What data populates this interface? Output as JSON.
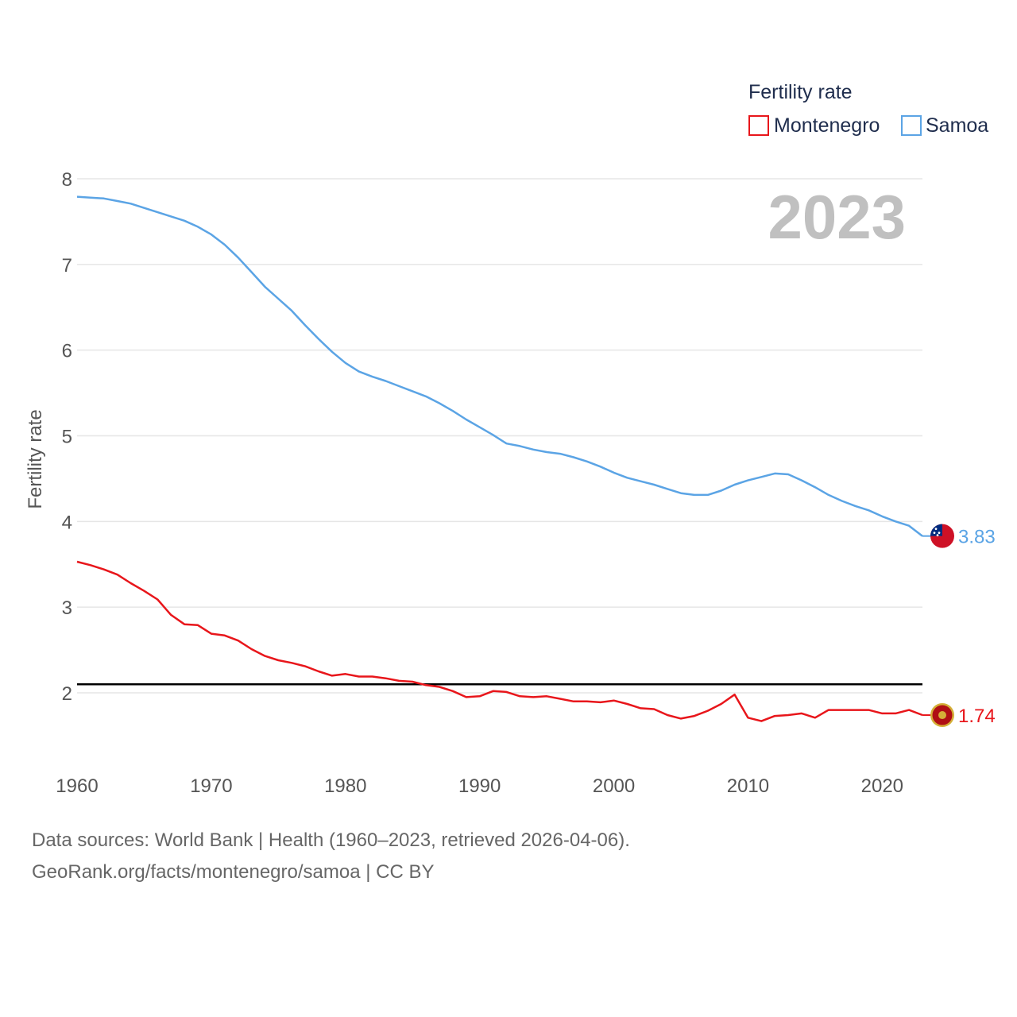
{
  "chart_data": {
    "type": "line",
    "legend_title": "Fertility rate",
    "ylabel": "Fertility rate",
    "year_label": "2023",
    "ylim": [
      1.0,
      8.2
    ],
    "xlim": [
      1960,
      2023
    ],
    "yticks": [
      2,
      3,
      4,
      5,
      6,
      7,
      8
    ],
    "xticks": [
      1960,
      1970,
      1980,
      1990,
      2000,
      2010,
      2020
    ],
    "reference_line": 2.1,
    "x": [
      1960,
      1961,
      1962,
      1963,
      1964,
      1965,
      1966,
      1967,
      1968,
      1969,
      1970,
      1971,
      1972,
      1973,
      1974,
      1975,
      1976,
      1977,
      1978,
      1979,
      1980,
      1981,
      1982,
      1983,
      1984,
      1985,
      1986,
      1987,
      1988,
      1989,
      1990,
      1991,
      1992,
      1993,
      1994,
      1995,
      1996,
      1997,
      1998,
      1999,
      2000,
      2001,
      2002,
      2003,
      2004,
      2005,
      2006,
      2007,
      2008,
      2009,
      2010,
      2011,
      2012,
      2013,
      2014,
      2015,
      2016,
      2017,
      2018,
      2019,
      2020,
      2021,
      2022,
      2023
    ],
    "series": [
      {
        "name": "Montenegro",
        "color": "#e8161b",
        "end_label": "1.74",
        "flag": "montenegro-flag",
        "values": [
          3.53,
          3.49,
          3.44,
          3.38,
          3.28,
          3.19,
          3.09,
          2.91,
          2.8,
          2.79,
          2.69,
          2.67,
          2.61,
          2.51,
          2.43,
          2.38,
          2.35,
          2.31,
          2.25,
          2.2,
          2.22,
          2.19,
          2.19,
          2.17,
          2.14,
          2.13,
          2.09,
          2.07,
          2.02,
          1.95,
          1.96,
          2.02,
          2.01,
          1.96,
          1.95,
          1.96,
          1.93,
          1.9,
          1.9,
          1.89,
          1.91,
          1.87,
          1.82,
          1.81,
          1.74,
          1.7,
          1.73,
          1.79,
          1.87,
          1.98,
          1.71,
          1.67,
          1.73,
          1.74,
          1.76,
          1.71,
          1.8,
          1.8,
          1.8,
          1.8,
          1.76,
          1.76,
          1.8,
          1.74
        ]
      },
      {
        "name": "Samoa",
        "color": "#5ba4e5",
        "end_label": "3.83",
        "flag": "samoa-flag",
        "values": [
          7.79,
          7.78,
          7.77,
          7.74,
          7.71,
          7.66,
          7.61,
          7.56,
          7.51,
          7.44,
          7.35,
          7.23,
          7.08,
          6.91,
          6.74,
          6.6,
          6.46,
          6.29,
          6.13,
          5.98,
          5.85,
          5.75,
          5.69,
          5.64,
          5.58,
          5.52,
          5.46,
          5.38,
          5.29,
          5.19,
          5.1,
          5.01,
          4.91,
          4.88,
          4.84,
          4.81,
          4.79,
          4.75,
          4.7,
          4.64,
          4.57,
          4.51,
          4.47,
          4.43,
          4.38,
          4.33,
          4.31,
          4.31,
          4.36,
          4.43,
          4.48,
          4.52,
          4.56,
          4.55,
          4.48,
          4.4,
          4.31,
          4.24,
          4.18,
          4.13,
          4.06,
          4.0,
          3.95,
          3.83
        ]
      }
    ],
    "sources_text": "Data sources: World Bank | Health (1960–2023, retrieved 2026-04-06).",
    "credit_text": "GeoRank.org/facts/montenegro/samoa | CC BY"
  }
}
